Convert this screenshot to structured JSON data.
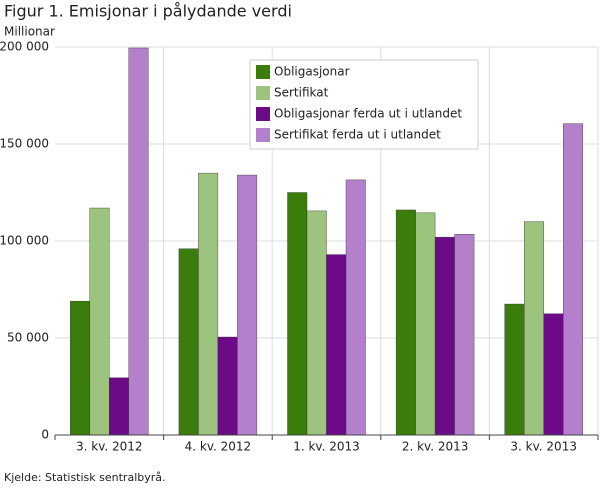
{
  "chart_data": {
    "type": "bar",
    "title": "Figur 1. Emisjonar i pålydande verdi",
    "y_label": "Millionar",
    "source": "Kjelde: Statistisk sentralbyrå.",
    "categories": [
      "3. kv. 2012",
      "4. kv. 2012",
      "1. kv. 2013",
      "2. kv. 2013",
      "3. kv. 2013"
    ],
    "series": [
      {
        "name": "Obligasjonar",
        "color": "#3a7d0a",
        "values": [
          69000,
          96000,
          125000,
          116000,
          67500
        ]
      },
      {
        "name": "Sertifikat",
        "color": "#9dc47f",
        "values": [
          117000,
          135000,
          115500,
          114500,
          110000
        ]
      },
      {
        "name": "Obligasjonar ferda ut i utlandet",
        "color": "#6c0a87",
        "values": [
          29500,
          50500,
          93000,
          102000,
          62500
        ]
      },
      {
        "name": "Sertifikat ferda ut i utlandet",
        "color": "#b47fcb",
        "values": [
          199500,
          134000,
          131500,
          103500,
          160500
        ]
      }
    ],
    "ylim": [
      0,
      200000
    ],
    "yticks": [
      0,
      {
        "value": 50000,
        "label": "50 000"
      },
      {
        "value": 100000,
        "label": "100 000"
      },
      {
        "value": 150000,
        "label": "150 000"
      },
      {
        "value": 200000,
        "label": "200 000"
      }
    ],
    "grid": true,
    "legend": "top-center"
  }
}
